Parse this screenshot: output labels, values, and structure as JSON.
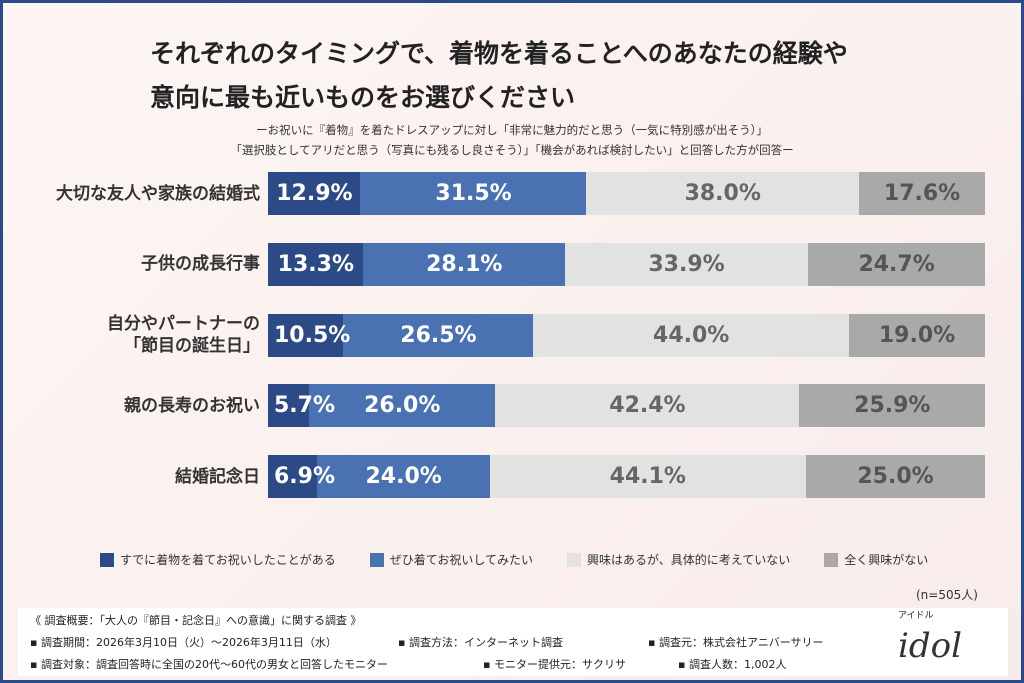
{
  "title_lines": [
    "それぞれのタイミングで、着物を着ることへのあなたの経験や",
    "意向に最も近いものをお選びください"
  ],
  "subtitle_lines": [
    "ーお祝いに『着物』を着たドレスアップに対し「非常に魅力的だと思う（一気に特別感が出そう）」",
    "「選択肢としてアリだと思う（写真にも残るし良さそう）」「機会があれば検討したい」と回答した方が回答ー"
  ],
  "chart_data": {
    "type": "bar",
    "orientation": "horizontal",
    "stacked": true,
    "categories": [
      "大切な友人や家族の結婚式",
      "子供の成長行事",
      "自分やパートナーの\n「節目の誕生日」",
      "親の長寿のお祝い",
      "結婚記念日"
    ],
    "series": [
      {
        "name": "すでに着物を着てお祝いしたことがある",
        "color": "#2c4a86",
        "values": [
          12.9,
          13.3,
          10.5,
          5.7,
          6.9
        ]
      },
      {
        "name": "ぜひ着てお祝いしてみたい",
        "color": "#4a72b2",
        "values": [
          31.5,
          28.1,
          26.5,
          26.0,
          24.0
        ]
      },
      {
        "name": "興味はあるが、具体的に考えていない",
        "color": "#e2e2e2",
        "values": [
          38.0,
          33.9,
          44.0,
          42.4,
          44.1
        ]
      },
      {
        "name": "全く興味がない",
        "color": "#a9a9a9",
        "values": [
          17.6,
          24.7,
          19.0,
          25.9,
          25.0
        ]
      }
    ],
    "unit": "%",
    "legend_position": "bottom"
  },
  "sample_note": "(n=505人)",
  "footer": {
    "heading": "《 調査概要：「大人の『節目・記念日』への意識」に関する調査 》",
    "items": [
      "▪ 調査期間：2026年3月10日（火）～2026年3月11日（水）",
      "▪ 調査方法：インターネット調査",
      "▪ 調査元：株式会社アニバーサリー",
      "▪ 調査対象：調査回答時に全国の20代～60代の男女と回答したモニター",
      "▪ モニター提供元：サクリサ",
      "▪ 調査人数：1,002人"
    ],
    "logo_text": "idol",
    "logo_kana": "アイドル"
  }
}
